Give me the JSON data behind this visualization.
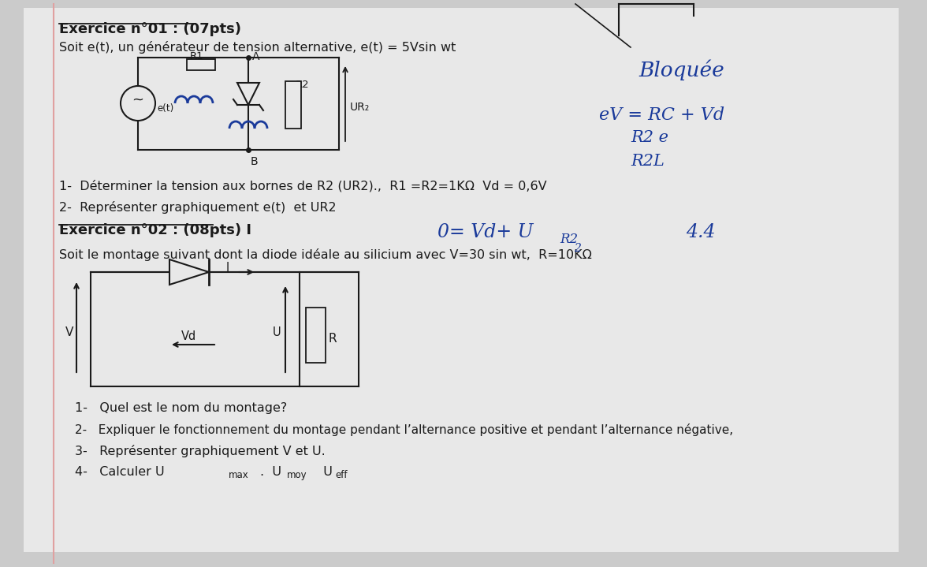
{
  "bg_color": "#cbcbcb",
  "title1": "Exercice n°01 : (07pts)",
  "intro1": "Soit e(t), un générateur de tension alternative, e(t) = 5Vsin wt",
  "q1_1": "1-  Déterminer la tension aux bornes de R2 (UR2).,  R1 =R2=1KΩ  Vd = 0,6V",
  "q1_2": "2-  Représenter graphiquement e(t)  et UR2",
  "title2": "Exercice n°02 : (08pts) I",
  "intro2": "Soit le montage suivant dont la diode idéale au silicium avec V=30 sin wt,  R=10KΩ",
  "q2_1": "1-   Quel est le nom du montage?",
  "q2_2": "2-   Expliquer le fonctionnement du montage pendant l’alternance positive et pendant l’alternance négative,",
  "q2_3": "3-   Représenter graphiquement V et U.",
  "q2_4": "4-   Calculer U_max.  U_moy  U_eff",
  "font_color": "#1a1a1a",
  "handwritten_color": "#1a3a9a",
  "hw1": "Bloquée",
  "hw2": "eV = RC + Vd",
  "hw3": "R2 e",
  "hw4": "R2L",
  "hw5_a": "0= Vd+ U",
  "hw5_b": "R2",
  "hw6": "4.4"
}
